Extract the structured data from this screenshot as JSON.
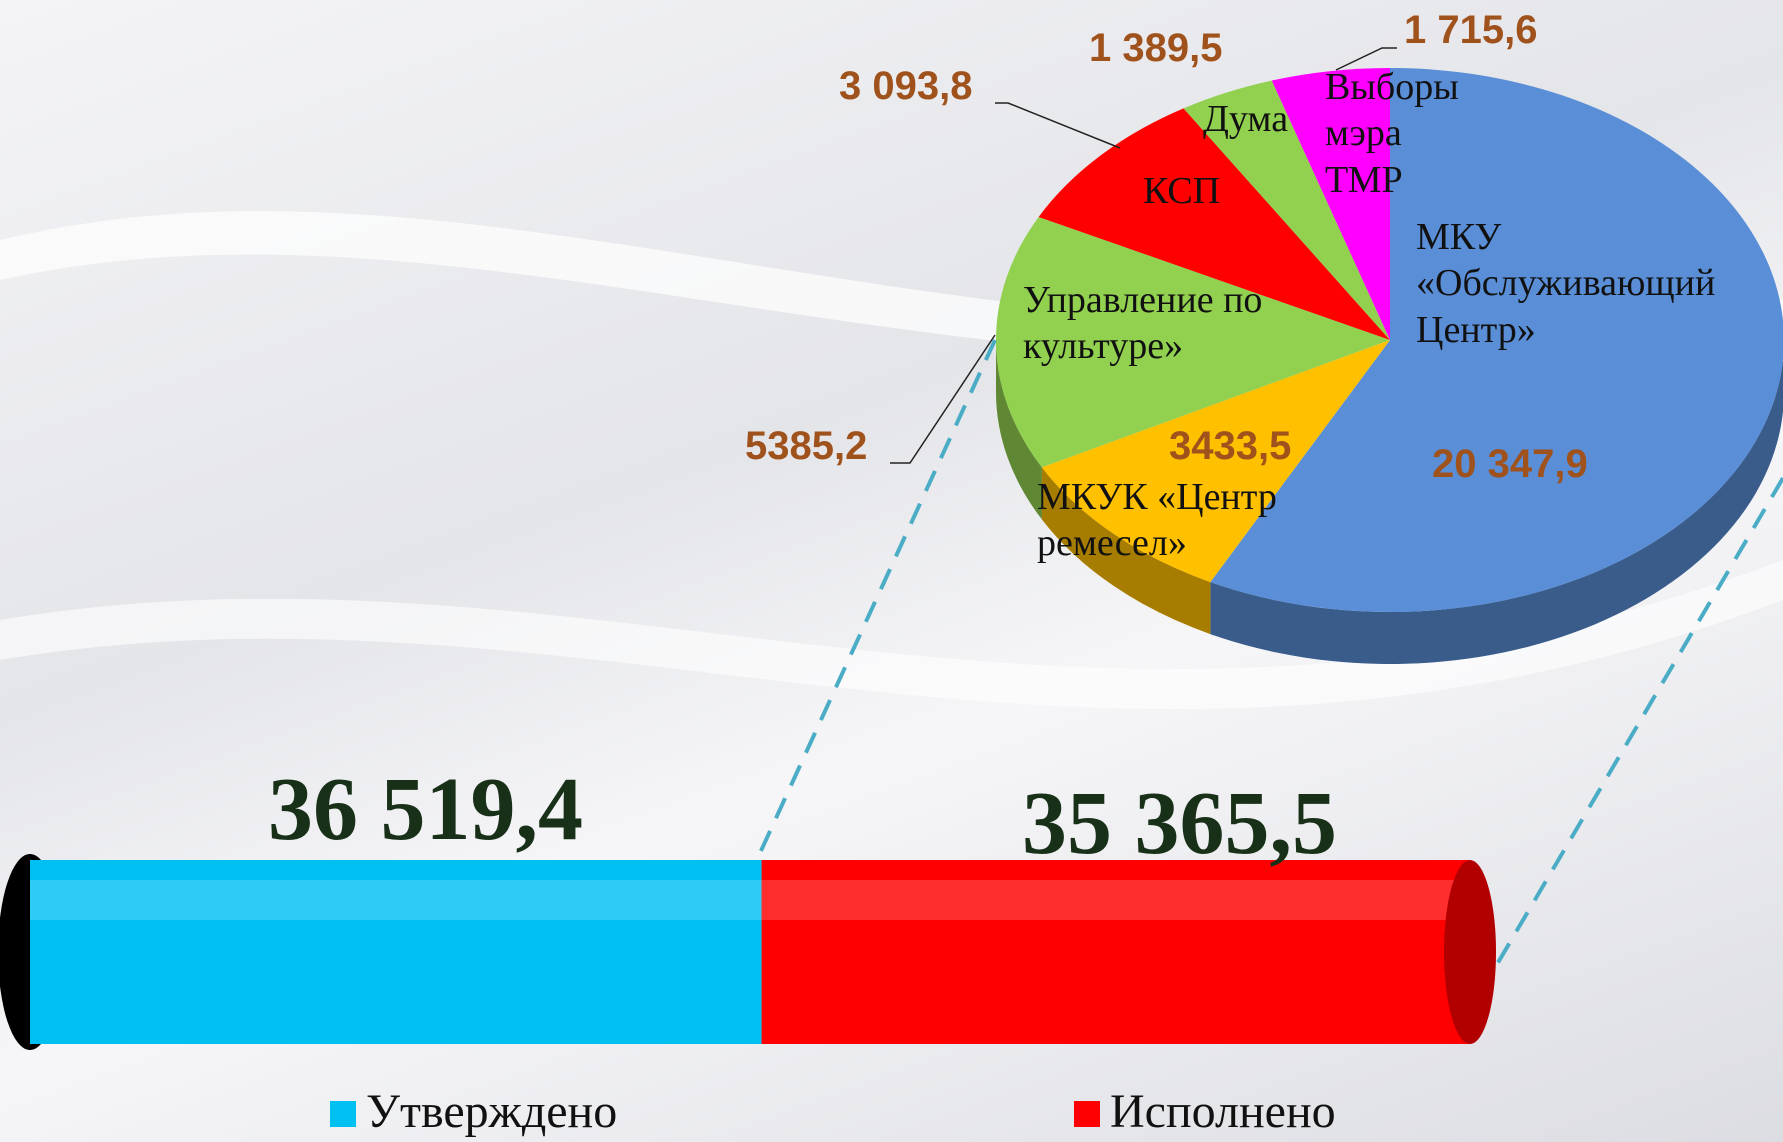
{
  "chart_data": [
    {
      "type": "pie",
      "categories": [
        "МКУ «Обслуживающий Центр»",
        "МКУК «Центр ремесел»",
        "Управление по культуре»",
        "КСП",
        "Дума",
        "Выборы мэра ТМР"
      ],
      "values": [
        20347.9,
        3433.5,
        5385.2,
        3093.8,
        1389.5,
        1715.6
      ],
      "value_labels": [
        "20 347,9",
        "3433,5",
        "5385,2",
        "3 093,8",
        "1 389,5",
        "1 715,6"
      ],
      "colors": [
        "#5a8ed6",
        "#ffc000",
        "#92d050",
        "#ff0000",
        "#92d050",
        "#ff00ff"
      ]
    },
    {
      "type": "bar",
      "series": [
        {
          "name": "Утверждено",
          "color": "#00c0f2",
          "values": [
            36519.4
          ],
          "value_labels": [
            "36 519,4"
          ]
        },
        {
          "name": "Исполнено",
          "color": "#ff0000",
          "values": [
            35365.5
          ],
          "value_labels": [
            "35 365,5"
          ]
        }
      ],
      "legend": "bottom"
    }
  ]
}
